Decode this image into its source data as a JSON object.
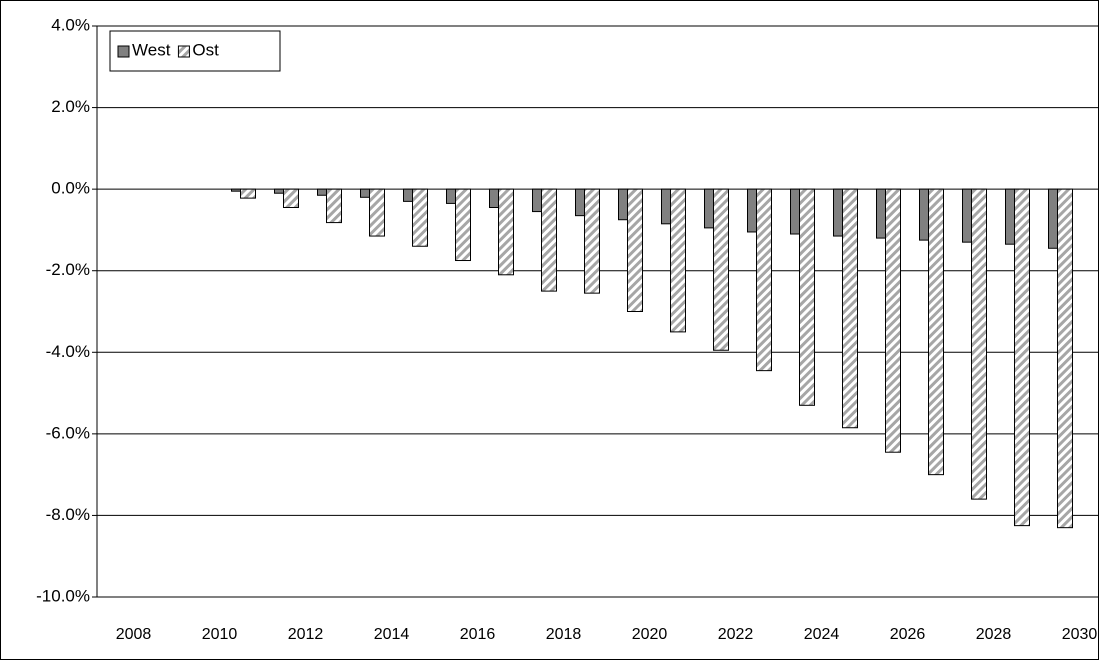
{
  "chart_data": {
    "type": "bar",
    "categories": [
      "2008",
      null,
      "2010",
      null,
      "2012",
      null,
      "2014",
      null,
      "2016",
      null,
      "2018",
      null,
      "2020",
      null,
      "2022",
      null,
      "2024",
      null,
      "2026",
      null,
      "2028",
      null,
      "2030"
    ],
    "series": [
      {
        "name": "West",
        "color": "#808080",
        "hatch": false,
        "values": [
          null,
          null,
          null,
          -0.05,
          -0.1,
          -0.15,
          -0.2,
          -0.3,
          -0.35,
          -0.45,
          -0.55,
          -0.65,
          -0.75,
          -0.85,
          -0.95,
          -1.05,
          -1.1,
          -1.15,
          -1.2,
          -1.25,
          -1.3,
          -1.35,
          -1.45
        ]
      },
      {
        "name": "Ost",
        "color": "#a6a6a6",
        "hatch": true,
        "values": [
          null,
          null,
          null,
          -0.22,
          -0.45,
          -0.82,
          -1.15,
          -1.4,
          -1.75,
          -2.1,
          -2.5,
          -2.55,
          -3.0,
          -3.5,
          -3.95,
          -4.45,
          -5.3,
          -5.85,
          -6.45,
          -7.0,
          -7.6,
          -8.25,
          -8.3
        ]
      }
    ],
    "ylim": [
      -10,
      4
    ],
    "yticks": [
      {
        "value": -10,
        "label": "-10.0%"
      },
      {
        "value": -8,
        "label": "-8.0%"
      },
      {
        "value": -6,
        "label": "-6.0%"
      },
      {
        "value": -4,
        "label": "-4.0%"
      },
      {
        "value": -2,
        "label": "-2.0%"
      },
      {
        "value": 0,
        "label": "0.0%"
      },
      {
        "value": 2,
        "label": "2.0%"
      },
      {
        "value": 4,
        "label": "4.0%"
      }
    ],
    "grid": true,
    "legend": "upper left"
  }
}
